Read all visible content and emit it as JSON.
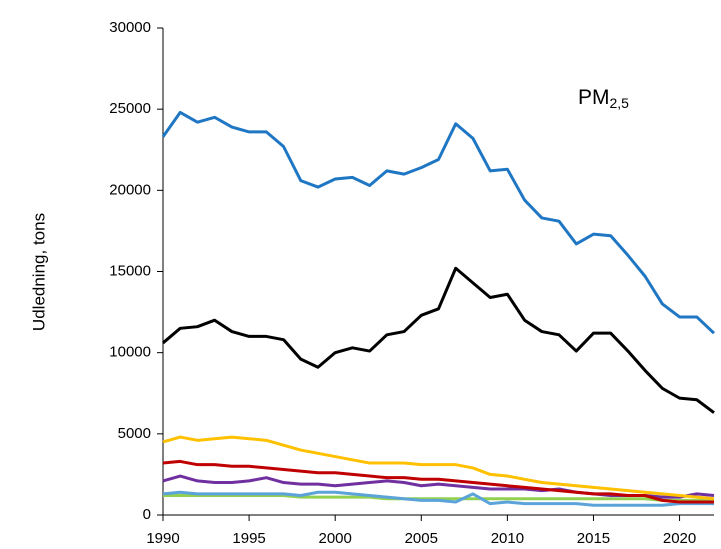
{
  "chart_data": {
    "type": "line",
    "y_label": "Udledning, tons",
    "annotation": {
      "text": "PM",
      "sub": "2,5"
    },
    "x": [
      1990,
      1991,
      1992,
      1993,
      1994,
      1995,
      1996,
      1997,
      1998,
      1999,
      2000,
      2001,
      2002,
      2003,
      2004,
      2005,
      2006,
      2007,
      2008,
      2009,
      2010,
      2011,
      2012,
      2013,
      2014,
      2015,
      2016,
      2017,
      2018,
      2019,
      2020,
      2021,
      2022
    ],
    "xlim": [
      1990,
      2022
    ],
    "xticks": [
      1990,
      1995,
      2000,
      2005,
      2010,
      2015,
      2020
    ],
    "ylim": [
      0,
      30000
    ],
    "yticks": [
      0,
      5000,
      10000,
      15000,
      20000,
      25000,
      30000
    ],
    "grid": false,
    "series": [
      {
        "color": "#1f77c4",
        "values": [
          23300,
          24800,
          24200,
          24500,
          23900,
          23600,
          23600,
          22700,
          20600,
          20200,
          20700,
          20800,
          20300,
          21200,
          21000,
          21400,
          21900,
          24100,
          23200,
          21200,
          21300,
          19400,
          18300,
          18100,
          16700,
          17300,
          17200,
          16000,
          14700,
          13000,
          12200,
          12200,
          11200
        ]
      },
      {
        "color": "#000000",
        "values": [
          10600,
          11500,
          11600,
          12000,
          11300,
          11000,
          11000,
          10800,
          9600,
          9100,
          10000,
          10300,
          10100,
          11100,
          11300,
          12300,
          12700,
          15200,
          14300,
          13400,
          13600,
          12000,
          11300,
          11100,
          10100,
          11200,
          11200,
          10100,
          8900,
          7800,
          7200,
          7100,
          6300
        ]
      },
      {
        "color": "#ffc000",
        "values": [
          4500,
          4800,
          4600,
          4700,
          4800,
          4700,
          4600,
          4300,
          4000,
          3800,
          3600,
          3400,
          3200,
          3200,
          3200,
          3100,
          3100,
          3100,
          2900,
          2500,
          2400,
          2200,
          2000,
          1900,
          1800,
          1700,
          1600,
          1500,
          1400,
          1300,
          1200,
          1100,
          1000
        ]
      },
      {
        "color": "#c00000",
        "values": [
          3200,
          3300,
          3100,
          3100,
          3000,
          3000,
          2900,
          2800,
          2700,
          2600,
          2600,
          2500,
          2400,
          2300,
          2300,
          2200,
          2200,
          2100,
          2000,
          1900,
          1800,
          1700,
          1600,
          1500,
          1400,
          1300,
          1300,
          1200,
          1200,
          900,
          800,
          800,
          800
        ]
      },
      {
        "color": "#7030a0",
        "values": [
          2100,
          2400,
          2100,
          2000,
          2000,
          2100,
          2300,
          2000,
          1900,
          1900,
          1800,
          1900,
          2000,
          2100,
          2000,
          1800,
          1900,
          1800,
          1700,
          1600,
          1600,
          1600,
          1500,
          1600,
          1400,
          1300,
          1200,
          1200,
          1200,
          1100,
          1100,
          1300,
          1200
        ]
      },
      {
        "color": "#5ba3d9",
        "values": [
          1300,
          1400,
          1300,
          1300,
          1300,
          1300,
          1300,
          1300,
          1200,
          1400,
          1400,
          1300,
          1200,
          1100,
          1000,
          900,
          900,
          800,
          1300,
          700,
          800,
          700,
          700,
          700,
          700,
          600,
          600,
          600,
          600,
          600,
          700,
          700,
          700
        ]
      },
      {
        "color": "#92d050",
        "values": [
          1200,
          1200,
          1200,
          1200,
          1200,
          1200,
          1200,
          1200,
          1100,
          1100,
          1100,
          1100,
          1100,
          1000,
          1000,
          1000,
          1000,
          1000,
          1000,
          1000,
          1000,
          1000,
          1000,
          1000,
          1000,
          1000,
          1000,
          1000,
          1000,
          900,
          900,
          900,
          900
        ]
      }
    ]
  }
}
